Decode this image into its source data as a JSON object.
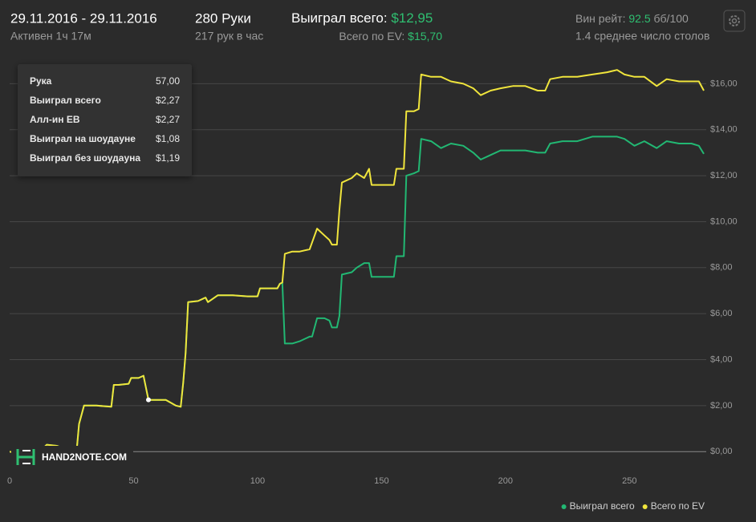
{
  "header": {
    "date_range": "29.11.2016 - 29.11.2016",
    "active": "Активен 1ч 17м",
    "hands": "280 Руки",
    "hands_per_hour": "217 рук в час",
    "won_label": "Выиграл всего:",
    "won_value": "$12,95",
    "ev_label": "Всего по EV:",
    "ev_value": "$15,70",
    "winrate_label": "Вин рейт:",
    "winrate_value": "92.5",
    "winrate_unit": "бб/100",
    "tables": "1.4 среднее число столов"
  },
  "tooltip": {
    "rows": [
      {
        "label": "Рука",
        "value": "57,00",
        "color": "#e8e8e8"
      },
      {
        "label": "Выиграл всего",
        "value": "$2,27",
        "color": "#2fbf71"
      },
      {
        "label": "Алл-ин EB",
        "value": "$2,27",
        "color": "#e6dc3a"
      },
      {
        "label": "Выиграл на шоудауне",
        "value": "$1,08",
        "color": "#4a8fd6"
      },
      {
        "label": "Выиграл без шоудауна",
        "value": "$1,19",
        "color": "#d03c5c"
      }
    ]
  },
  "chart_data": {
    "type": "line",
    "watermark": "HAND2NOTE.COM",
    "legend": "bottom-right",
    "grid": true,
    "xlim": [
      0,
      280
    ],
    "ylim": [
      -0.9,
      17.2
    ],
    "xticks": [
      0,
      50,
      100,
      150,
      200,
      250
    ],
    "yticks": [
      {
        "value": 0,
        "label": "$0,00"
      },
      {
        "value": 2,
        "label": "$2,00"
      },
      {
        "value": 4,
        "label": "$4,00"
      },
      {
        "value": 6,
        "label": "$6,00"
      },
      {
        "value": 8,
        "label": "$8,00"
      },
      {
        "value": 10,
        "label": "$10,00"
      },
      {
        "value": 12,
        "label": "$12,00"
      },
      {
        "value": 14,
        "label": "$14,00"
      },
      {
        "value": 16,
        "label": "$16,00"
      }
    ],
    "x": [
      0,
      4,
      8,
      12,
      15,
      19,
      23,
      27,
      28,
      30,
      35,
      41,
      42,
      44,
      48,
      49,
      52,
      54,
      56,
      60,
      63,
      67,
      69,
      70,
      71,
      72,
      76,
      79,
      80,
      84,
      90,
      96,
      100,
      101,
      105,
      108,
      109,
      110,
      111,
      114,
      117,
      121,
      122,
      124,
      127,
      129,
      130,
      132,
      133,
      134,
      138,
      140,
      143,
      145,
      146,
      150,
      155,
      156,
      159,
      160,
      163,
      165,
      166,
      170,
      174,
      178,
      183,
      187,
      190,
      194,
      198,
      203,
      208,
      213,
      216,
      218,
      223,
      229,
      235,
      241,
      245,
      248,
      252,
      256,
      261,
      265,
      270,
      275,
      278,
      280
    ],
    "series": [
      {
        "name": "Выиграл всего",
        "color": "#22b873",
        "values": [
          0,
          -0.1,
          0,
          0,
          0.3,
          0.25,
          0.1,
          0,
          1.2,
          2.0,
          2.0,
          1.95,
          2.9,
          2.9,
          2.95,
          3.2,
          3.2,
          3.3,
          2.25,
          2.25,
          2.25,
          2.0,
          1.95,
          3.0,
          4.3,
          6.5,
          6.55,
          6.7,
          6.5,
          6.8,
          6.8,
          6.75,
          6.75,
          7.1,
          7.1,
          7.1,
          7.3,
          7.35,
          4.7,
          4.7,
          4.8,
          5.0,
          5.0,
          5.8,
          5.8,
          5.7,
          5.4,
          5.4,
          5.9,
          7.7,
          7.8,
          8.0,
          8.2,
          8.2,
          7.6,
          7.6,
          7.6,
          8.5,
          8.5,
          12.0,
          12.1,
          12.2,
          13.6,
          13.5,
          13.2,
          13.4,
          13.3,
          13.0,
          12.7,
          12.9,
          13.1,
          13.1,
          13.1,
          13.0,
          13.0,
          13.4,
          13.5,
          13.5,
          13.7,
          13.7,
          13.7,
          13.6,
          13.3,
          13.5,
          13.2,
          13.5,
          13.4,
          13.4,
          13.3,
          12.95
        ]
      },
      {
        "name": "Всего по EV",
        "color": "#f0e53c",
        "values": [
          0,
          -0.1,
          0,
          0,
          0.3,
          0.25,
          0.1,
          0,
          1.2,
          2.0,
          2.0,
          1.95,
          2.9,
          2.9,
          2.95,
          3.2,
          3.2,
          3.3,
          2.25,
          2.25,
          2.25,
          2.0,
          1.95,
          3.0,
          4.3,
          6.5,
          6.55,
          6.7,
          6.5,
          6.8,
          6.8,
          6.75,
          6.75,
          7.1,
          7.1,
          7.1,
          7.3,
          7.35,
          8.6,
          8.7,
          8.7,
          8.8,
          9.1,
          9.7,
          9.4,
          9.2,
          9.0,
          9.0,
          10.5,
          11.7,
          11.9,
          12.1,
          11.9,
          12.3,
          11.6,
          11.6,
          11.6,
          12.3,
          12.3,
          14.8,
          14.8,
          14.9,
          16.4,
          16.3,
          16.3,
          16.1,
          16.0,
          15.8,
          15.5,
          15.7,
          15.8,
          15.9,
          15.9,
          15.7,
          15.7,
          16.2,
          16.3,
          16.3,
          16.4,
          16.5,
          16.6,
          16.4,
          16.3,
          16.3,
          15.9,
          16.2,
          16.1,
          16.1,
          16.1,
          15.7
        ]
      }
    ]
  }
}
